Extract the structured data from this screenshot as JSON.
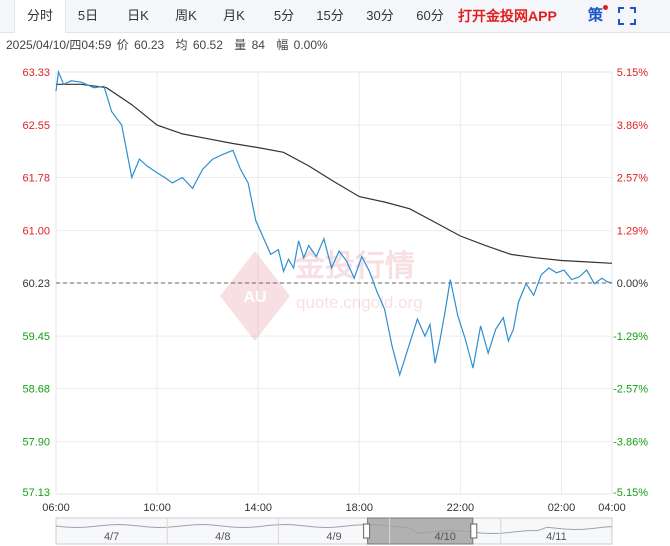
{
  "toolbar": {
    "tabs": [
      "分时",
      "5日",
      "日K",
      "周K",
      "月K",
      "5分",
      "15分",
      "30分",
      "60分"
    ],
    "active_tab": "分时",
    "app_link": "打开金投网APP",
    "strategy_label": "策"
  },
  "info": {
    "datetime": "2025/04/10/四04:59",
    "price_label": "价",
    "price": "60.23",
    "avg_label": "均",
    "avg": "60.52",
    "volume_label": "量",
    "volume": "84",
    "change_label": "幅",
    "change": "0.00%"
  },
  "watermark": {
    "brand_cn": "金投行情",
    "url": "quote.cngold.org",
    "logo_text": "AU"
  },
  "colors": {
    "price_line": "#2e8fd0",
    "avg_line": "#333333",
    "up": "#e02020",
    "down": "#12a012",
    "baseline": "#666666"
  },
  "chart_data": {
    "type": "line",
    "y_left_ticks": [
      "63.33",
      "62.55",
      "61.78",
      "61.00",
      "60.23",
      "59.45",
      "58.68",
      "57.90",
      "57.13"
    ],
    "y_right_ticks": [
      "5.15%",
      "3.86%",
      "2.57%",
      "1.29%",
      "0.00%",
      "-1.29%",
      "-2.57%",
      "-3.86%",
      "-5.15%"
    ],
    "ylim": [
      57.13,
      63.33
    ],
    "baseline": 60.23,
    "x_ticks": [
      "06:00",
      "10:00",
      "14:00",
      "18:00",
      "22:00",
      "02:00",
      "04:00"
    ],
    "x_tick_hours": [
      0,
      4,
      8,
      12,
      16,
      20,
      22
    ],
    "xlim_hours": [
      0,
      22
    ],
    "series": [
      {
        "name": "价",
        "x": [
          0,
          0.1,
          0.3,
          0.6,
          1.0,
          1.5,
          1.9,
          2.2,
          2.6,
          3.0,
          3.3,
          3.6,
          4.0,
          4.3,
          4.6,
          5.0,
          5.4,
          5.8,
          6.2,
          6.6,
          7.0,
          7.3,
          7.6,
          7.9,
          8.2,
          8.5,
          8.8,
          9.0,
          9.2,
          9.4,
          9.6,
          9.8,
          10.0,
          10.3,
          10.6,
          10.9,
          11.2,
          11.5,
          11.8,
          12.1,
          12.4,
          12.7,
          13.0,
          13.3,
          13.6,
          14.0,
          14.3,
          14.6,
          14.8,
          15.0,
          15.2,
          15.4,
          15.6,
          15.9,
          16.2,
          16.5,
          16.8,
          17.1,
          17.4,
          17.7,
          17.9,
          18.1,
          18.3,
          18.6,
          18.9,
          19.2,
          19.5,
          19.8,
          20.1,
          20.4,
          20.7,
          21.0,
          21.3,
          21.6,
          21.8,
          22.0
        ],
        "values": [
          63.05,
          63.33,
          63.15,
          63.2,
          63.18,
          63.1,
          63.12,
          62.75,
          62.55,
          61.78,
          62.05,
          61.95,
          61.85,
          61.78,
          61.7,
          61.78,
          61.62,
          61.9,
          62.05,
          62.12,
          62.18,
          61.9,
          61.7,
          61.15,
          60.9,
          60.65,
          60.72,
          60.4,
          60.58,
          60.45,
          60.85,
          60.6,
          60.78,
          60.62,
          60.88,
          60.45,
          60.7,
          60.55,
          60.3,
          60.62,
          60.4,
          60.1,
          59.85,
          59.3,
          58.88,
          59.35,
          59.7,
          59.45,
          59.62,
          59.05,
          59.4,
          59.82,
          60.28,
          59.75,
          59.4,
          58.98,
          59.6,
          59.2,
          59.55,
          59.72,
          59.38,
          59.55,
          59.95,
          60.22,
          60.05,
          60.35,
          60.45,
          60.38,
          60.42,
          60.28,
          60.32,
          60.42,
          60.22,
          60.3,
          60.25,
          60.23
        ]
      },
      {
        "name": "均",
        "x": [
          0,
          1,
          2,
          3,
          4,
          5,
          6,
          7,
          8,
          9,
          10,
          11,
          12,
          13,
          14,
          15,
          16,
          17,
          18,
          19,
          20,
          21,
          22
        ],
        "values": [
          63.15,
          63.15,
          63.1,
          62.85,
          62.55,
          62.42,
          62.35,
          62.28,
          62.22,
          62.15,
          61.95,
          61.72,
          61.5,
          61.42,
          61.32,
          61.12,
          60.92,
          60.78,
          60.65,
          60.6,
          60.56,
          60.54,
          60.52
        ]
      }
    ],
    "navigator": {
      "date_labels": [
        "4/7",
        "4/8",
        "4/9",
        "4/10",
        "4/11"
      ]
    }
  }
}
